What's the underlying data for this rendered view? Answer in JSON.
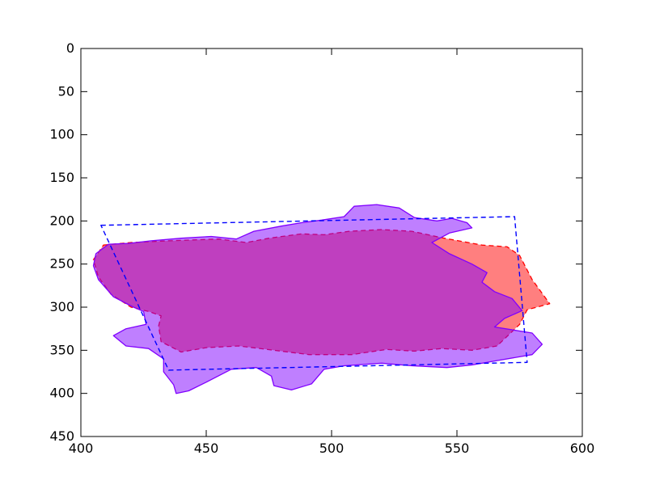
{
  "chart_data": {
    "type": "area",
    "title": "",
    "xlabel": "",
    "ylabel": "",
    "xlim": [
      400,
      600
    ],
    "ylim": [
      450,
      0
    ],
    "y_inverted": true,
    "grid": false,
    "legend": "none",
    "x_ticks": [
      400,
      450,
      500,
      550,
      600
    ],
    "y_ticks": [
      0,
      50,
      100,
      150,
      200,
      250,
      300,
      350,
      400,
      450
    ],
    "series": [
      {
        "kind": "quad",
        "style": "dashed",
        "stroke": "#0000ff",
        "points": [
          [
            408,
            205
          ],
          [
            573,
            195
          ],
          [
            578,
            364
          ],
          [
            435,
            373
          ]
        ]
      },
      {
        "kind": "filled-region",
        "fill": "#ff0000",
        "fill_opacity": 0.5,
        "stroke": "#ff0000",
        "style": "dashed",
        "points": [
          [
            409,
            228
          ],
          [
            420,
            225
          ],
          [
            435,
            223
          ],
          [
            445,
            222
          ],
          [
            455,
            221
          ],
          [
            466,
            225
          ],
          [
            475,
            220
          ],
          [
            488,
            215
          ],
          [
            497,
            216
          ],
          [
            507,
            212
          ],
          [
            520,
            210
          ],
          [
            532,
            212
          ],
          [
            545,
            220
          ],
          [
            560,
            228
          ],
          [
            570,
            230
          ],
          [
            575,
            240
          ],
          [
            580,
            268
          ],
          [
            587,
            296
          ],
          [
            578,
            303
          ],
          [
            575,
            320
          ],
          [
            566,
            345
          ],
          [
            556,
            350
          ],
          [
            544,
            348
          ],
          [
            533,
            351
          ],
          [
            522,
            349
          ],
          [
            508,
            355
          ],
          [
            491,
            355
          ],
          [
            477,
            350
          ],
          [
            463,
            345
          ],
          [
            450,
            347
          ],
          [
            440,
            352
          ],
          [
            432,
            340
          ],
          [
            431,
            322
          ],
          [
            432,
            310
          ],
          [
            427,
            305
          ],
          [
            420,
            300
          ],
          [
            412,
            285
          ],
          [
            407,
            265
          ],
          [
            405,
            245
          ]
        ]
      },
      {
        "kind": "filled-region",
        "fill": "#8000ff",
        "fill_opacity": 0.5,
        "stroke": "#8000ff",
        "style": "solid",
        "points": [
          [
            406,
            238
          ],
          [
            411,
            227
          ],
          [
            419,
            226
          ],
          [
            428,
            223
          ],
          [
            440,
            220
          ],
          [
            452,
            218
          ],
          [
            462,
            221
          ],
          [
            469,
            212
          ],
          [
            480,
            206
          ],
          [
            488,
            202
          ],
          [
            496,
            199
          ],
          [
            505,
            195
          ],
          [
            509,
            183
          ],
          [
            518,
            181
          ],
          [
            527,
            185
          ],
          [
            533,
            196
          ],
          [
            542,
            200
          ],
          [
            548,
            197
          ],
          [
            554,
            202
          ],
          [
            556,
            208
          ],
          [
            547,
            214
          ],
          [
            540,
            225
          ],
          [
            547,
            238
          ],
          [
            556,
            250
          ],
          [
            562,
            260
          ],
          [
            560,
            271
          ],
          [
            565,
            282
          ],
          [
            572,
            290
          ],
          [
            576,
            304
          ],
          [
            569,
            313
          ],
          [
            565,
            323
          ],
          [
            580,
            330
          ],
          [
            584,
            343
          ],
          [
            580,
            355
          ],
          [
            566,
            362
          ],
          [
            556,
            367
          ],
          [
            546,
            370
          ],
          [
            532,
            368
          ],
          [
            520,
            365
          ],
          [
            505,
            368
          ],
          [
            497,
            372
          ],
          [
            492,
            389
          ],
          [
            484,
            396
          ],
          [
            477,
            391
          ],
          [
            476,
            380
          ],
          [
            470,
            370
          ],
          [
            460,
            372
          ],
          [
            450,
            387
          ],
          [
            443,
            397
          ],
          [
            438,
            400
          ],
          [
            437,
            390
          ],
          [
            433,
            375
          ],
          [
            433,
            360
          ],
          [
            427,
            348
          ],
          [
            418,
            345
          ],
          [
            413,
            333
          ],
          [
            418,
            325
          ],
          [
            426,
            320
          ],
          [
            425,
            305
          ],
          [
            421,
            300
          ],
          [
            413,
            288
          ],
          [
            407,
            268
          ],
          [
            405,
            252
          ]
        ]
      }
    ]
  }
}
